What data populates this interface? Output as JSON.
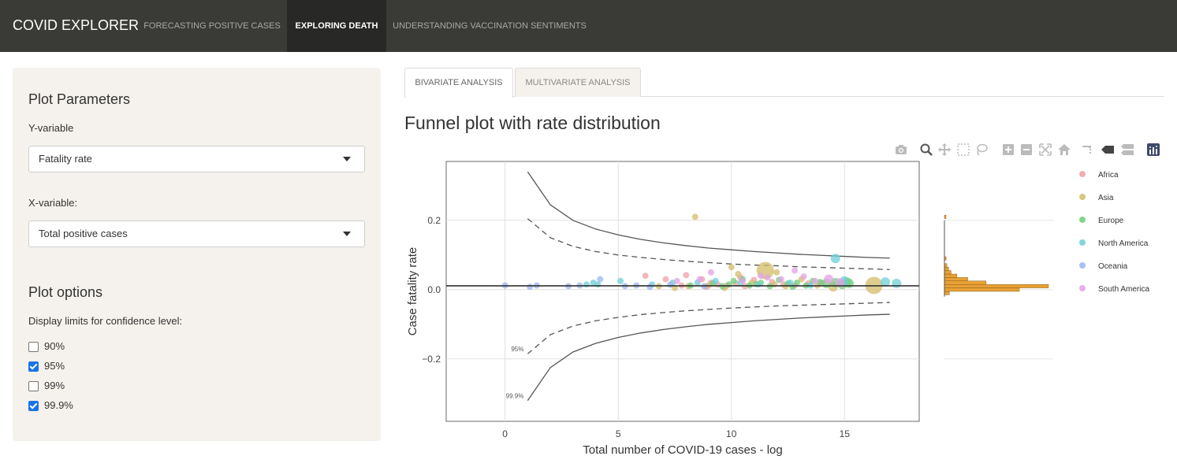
{
  "app": {
    "brand": "COVID EXPLORER",
    "nav": [
      "FORECASTING POSITIVE CASES",
      "EXPLORING DEATH",
      "UNDERSTANDING VACCINATION SENTIMENTS"
    ]
  },
  "sidebar": {
    "plot_params_heading": "Plot Parameters",
    "y_label": "Y-variable",
    "y_value": "Fatality rate",
    "x_label": "X-variable:",
    "x_value": "Total positive cases",
    "plot_options_heading": "Plot options",
    "conf_label": "Display limits for confidence level:",
    "conf_options": [
      {
        "label": "90%",
        "checked": false
      },
      {
        "label": "95%",
        "checked": true
      },
      {
        "label": "99%",
        "checked": false
      },
      {
        "label": "99.9%",
        "checked": true
      }
    ]
  },
  "tabs": [
    "BIVARIATE ANALYSIS",
    "MULTIVARIATE ANALYSIS"
  ],
  "plot_title": "Funnel plot with rate distribution",
  "toolbar_icons": [
    "camera-icon",
    "zoom-icon",
    "pan-icon",
    "box-select-icon",
    "lasso-select-icon",
    "zoom-in-icon",
    "zoom-out-icon",
    "autoscale-icon",
    "reset-axes-icon",
    "spike-lines-icon",
    "hover-closest-icon",
    "hover-compare-icon",
    "plotly-logo-icon"
  ],
  "chart_data": {
    "type": "scatter",
    "xlabel": "Total number of COVID-19 cases - log",
    "ylabel": "Case fatality rate",
    "xlim": [
      -2.6,
      18.3
    ],
    "ylim": [
      -0.38,
      0.37
    ],
    "x_ticks": [
      0,
      5,
      10,
      15
    ],
    "y_ticks": [
      0.2,
      0.0,
      -0.2
    ],
    "y_tick_labels": [
      "0.2",
      "0.0",
      "−0.2"
    ],
    "grid": true,
    "legend_position": "right",
    "overall_rate": 0.011,
    "funnel_x": [
      1,
      2,
      3,
      4,
      5,
      6,
      7,
      8,
      9,
      10,
      11,
      12,
      13,
      14,
      15,
      16,
      17
    ],
    "limits": [
      {
        "name": "95%",
        "label": "95%",
        "upper": [
          0.205,
          0.15,
          0.125,
          0.11,
          0.1,
          0.093,
          0.087,
          0.082,
          0.078,
          0.074,
          0.071,
          0.069,
          0.066,
          0.064,
          0.062,
          0.06,
          0.058
        ],
        "lower": [
          -0.185,
          -0.13,
          -0.105,
          -0.09,
          -0.08,
          -0.072,
          -0.066,
          -0.061,
          -0.057,
          -0.053,
          -0.05,
          -0.047,
          -0.045,
          -0.043,
          -0.041,
          -0.039,
          -0.037
        ],
        "dash": true
      },
      {
        "name": "99.9%",
        "label": "99.9%",
        "upper": [
          0.34,
          0.245,
          0.2,
          0.175,
          0.158,
          0.145,
          0.135,
          0.127,
          0.12,
          0.115,
          0.11,
          0.106,
          0.102,
          0.099,
          0.096,
          0.093,
          0.091
        ],
        "lower": [
          -0.32,
          -0.225,
          -0.18,
          -0.155,
          -0.138,
          -0.125,
          -0.115,
          -0.107,
          -0.1,
          -0.095,
          -0.09,
          -0.086,
          -0.082,
          -0.079,
          -0.076,
          -0.073,
          -0.071
        ],
        "dash": false
      }
    ],
    "series": [
      {
        "name": "Africa",
        "color": "#f0a0a8",
        "points": [
          [
            6.2,
            0.04
          ],
          [
            7.1,
            0.03
          ],
          [
            7.8,
            0.012
          ],
          [
            8.0,
            0.042
          ],
          [
            8.7,
            0.03
          ],
          [
            9.1,
            0.02
          ],
          [
            9.4,
            0.015
          ],
          [
            10.2,
            0.018
          ],
          [
            10.6,
            0.01
          ],
          [
            11.0,
            0.028
          ],
          [
            11.8,
            0.022
          ],
          [
            12.3,
            0.015
          ],
          [
            12.8,
            0.012
          ],
          [
            13.4,
            0.018
          ],
          [
            14.0,
            0.02
          ],
          [
            8.9,
            0.008
          ],
          [
            9.8,
            0.012
          ],
          [
            10.4,
            0.035
          ]
        ]
      },
      {
        "name": "Asia",
        "color": "#d4bc6a",
        "points": [
          [
            8.4,
            0.21
          ],
          [
            11.5,
            0.055
          ],
          [
            16.3,
            0.012
          ],
          [
            6.8,
            0.01
          ],
          [
            8.1,
            0.01
          ],
          [
            9.0,
            0.012
          ],
          [
            9.7,
            0.005
          ],
          [
            10.3,
            0.045
          ],
          [
            10.9,
            0.02
          ],
          [
            11.9,
            0.015
          ],
          [
            12.4,
            0.01
          ],
          [
            13.1,
            0.03
          ],
          [
            13.8,
            0.012
          ],
          [
            14.5,
            0.008
          ],
          [
            7.5,
            0.005
          ],
          [
            10.0,
            0.065
          ],
          [
            12.0,
            0.05
          ]
        ]
      },
      {
        "name": "Europe",
        "color": "#6fcf78",
        "points": [
          [
            8.2,
            0.012
          ],
          [
            9.2,
            0.018
          ],
          [
            9.6,
            0.01
          ],
          [
            10.1,
            0.025
          ],
          [
            10.8,
            0.012
          ],
          [
            11.3,
            0.02
          ],
          [
            11.7,
            0.01
          ],
          [
            12.1,
            0.028
          ],
          [
            12.5,
            0.018
          ],
          [
            12.9,
            0.02
          ],
          [
            13.3,
            0.012
          ],
          [
            13.6,
            0.025
          ],
          [
            13.9,
            0.022
          ],
          [
            14.2,
            0.018
          ],
          [
            14.6,
            0.02
          ],
          [
            14.9,
            0.015
          ],
          [
            15.1,
            0.022
          ],
          [
            15.2,
            0.018
          ],
          [
            9.9,
            0.015
          ],
          [
            11.1,
            0.016
          ],
          [
            10.5,
            0.03
          ],
          [
            12.7,
            0.008
          ]
        ]
      },
      {
        "name": "North America",
        "color": "#6dcfd6",
        "points": [
          [
            3.6,
            0.015
          ],
          [
            3.9,
            0.02
          ],
          [
            4.1,
            0.015
          ],
          [
            5.1,
            0.025
          ],
          [
            7.4,
            0.02
          ],
          [
            8.5,
            0.02
          ],
          [
            9.3,
            0.025
          ],
          [
            10.4,
            0.02
          ],
          [
            11.2,
            0.015
          ],
          [
            12.6,
            0.02
          ],
          [
            14.6,
            0.09
          ],
          [
            16.8,
            0.022
          ],
          [
            17.3,
            0.018
          ],
          [
            6.5,
            0.015
          ],
          [
            13.5,
            0.012
          ],
          [
            15.0,
            0.025
          ]
        ]
      },
      {
        "name": "Oceania",
        "color": "#9bb4f2",
        "points": [
          [
            0.0,
            0.012
          ],
          [
            1.1,
            0.008
          ],
          [
            1.4,
            0.012
          ],
          [
            2.8,
            0.01
          ],
          [
            3.3,
            0.012
          ],
          [
            4.2,
            0.03
          ],
          [
            5.3,
            0.01
          ],
          [
            5.8,
            0.012
          ],
          [
            6.4,
            0.008
          ],
          [
            7.3,
            0.014
          ],
          [
            8.8,
            0.01
          ]
        ]
      },
      {
        "name": "South America",
        "color": "#e1a2e6",
        "points": [
          [
            7.6,
            0.025
          ],
          [
            8.6,
            0.03
          ],
          [
            9.1,
            0.05
          ],
          [
            10.5,
            0.025
          ],
          [
            11.3,
            0.04
          ],
          [
            12.2,
            0.03
          ],
          [
            13.2,
            0.038
          ],
          [
            13.7,
            0.025
          ],
          [
            14.3,
            0.03
          ],
          [
            14.8,
            0.02
          ],
          [
            12.8,
            0.055
          ],
          [
            11.6,
            0.035
          ]
        ]
      }
    ],
    "distribution": [
      {
        "bin": -0.01,
        "count": 6
      },
      {
        "bin": 0.0,
        "count": 90
      },
      {
        "bin": 0.01,
        "count": 125
      },
      {
        "bin": 0.02,
        "count": 50
      },
      {
        "bin": 0.03,
        "count": 28
      },
      {
        "bin": 0.04,
        "count": 15
      },
      {
        "bin": 0.05,
        "count": 8
      },
      {
        "bin": 0.06,
        "count": 5
      },
      {
        "bin": 0.07,
        "count": 3
      },
      {
        "bin": 0.09,
        "count": 2
      },
      {
        "bin": 0.21,
        "count": 1
      }
    ]
  }
}
